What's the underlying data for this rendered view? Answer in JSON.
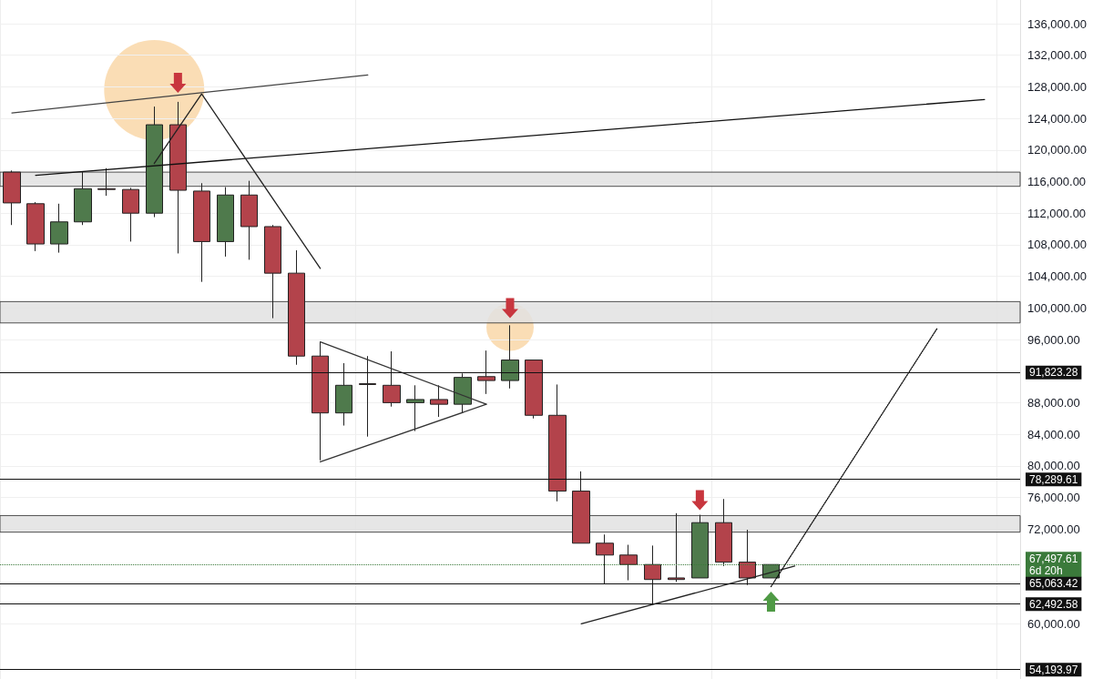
{
  "chart_data": {
    "type": "candlestick",
    "categories": [
      null,
      null,
      null,
      null,
      null,
      null,
      null,
      null,
      null,
      null,
      null,
      null,
      null,
      null,
      null,
      null,
      null,
      null,
      null,
      null,
      null,
      null,
      null,
      null,
      null,
      null,
      null,
      null,
      null,
      null,
      null,
      null,
      null,
      null,
      null,
      null,
      null,
      null,
      null,
      null,
      null,
      null,
      null
    ],
    "ohlc": [
      [
        117200,
        117400,
        110500,
        113300
      ],
      [
        113200,
        113400,
        107200,
        108100
      ],
      [
        108100,
        113200,
        107000,
        110900
      ],
      [
        110900,
        117200,
        110500,
        115100
      ],
      [
        115100,
        117700,
        114200,
        115000
      ],
      [
        115000,
        115200,
        108400,
        112000
      ],
      [
        112000,
        125500,
        111500,
        123200
      ],
      [
        123200,
        126100,
        106900,
        114900
      ],
      [
        114800,
        115800,
        103300,
        108400
      ],
      [
        108400,
        115300,
        106500,
        114300
      ],
      [
        114300,
        116100,
        106100,
        110300
      ],
      [
        110300,
        110500,
        98700,
        104400
      ],
      [
        104400,
        107300,
        92800,
        93900
      ],
      [
        93900,
        95700,
        80700,
        86700
      ],
      [
        86700,
        93000,
        85100,
        90200
      ],
      [
        90400,
        93900,
        83700,
        90300
      ],
      [
        90200,
        94500,
        87500,
        88000
      ],
      [
        88000,
        90200,
        84400,
        88400
      ],
      [
        88400,
        90200,
        86200,
        87800
      ],
      [
        87800,
        91700,
        86700,
        91200
      ],
      [
        91300,
        94600,
        89100,
        90800
      ],
      [
        90800,
        97800,
        89800,
        93400
      ],
      [
        93400,
        93400,
        86000,
        86400
      ],
      [
        86400,
        90300,
        75500,
        76800
      ],
      [
        76800,
        79300,
        70200,
        70200
      ],
      [
        70200,
        71300,
        65000,
        68700
      ],
      [
        68700,
        70000,
        65500,
        67500
      ],
      [
        67500,
        69900,
        62400,
        65600
      ],
      [
        65800,
        74000,
        65300,
        65600
      ],
      [
        65800,
        73800,
        65800,
        72800
      ],
      [
        72800,
        75800,
        67300,
        67800
      ],
      [
        67800,
        71900,
        64900,
        65800
      ],
      [
        65800,
        67500,
        65800,
        67500
      ],
      null,
      null,
      null,
      null,
      null,
      null,
      null,
      null,
      null,
      null
    ],
    "series": [
      {
        "type": "line",
        "color": "#111111",
        "values": [
          null,
          116800,
          null,
          null,
          null,
          null,
          null,
          null,
          null,
          null,
          null,
          null,
          null,
          null,
          null,
          null,
          null,
          null,
          null,
          null,
          null,
          null,
          null,
          null,
          null,
          null,
          null,
          null,
          null,
          null,
          null,
          null,
          null,
          null,
          null,
          null,
          null,
          null,
          null,
          null,
          null,
          126400,
          null
        ]
      },
      {
        "type": "line",
        "color": "#444444",
        "values": [
          124700,
          null,
          null,
          null,
          null,
          null,
          null,
          null,
          null,
          null,
          null,
          null,
          null,
          null,
          null,
          129500,
          null,
          null,
          null,
          null,
          null,
          null,
          null,
          null,
          null,
          null,
          null,
          null,
          null,
          null,
          null,
          null,
          null,
          null,
          null,
          null,
          null,
          null,
          null,
          null,
          null,
          null,
          null
        ]
      },
      {
        "type": "line",
        "color": "#222222",
        "values": [
          null,
          null,
          null,
          null,
          null,
          null,
          118300,
          null,
          127100,
          null,
          null,
          null,
          null,
          105000,
          null,
          null,
          null,
          null,
          null,
          null,
          null,
          null,
          null,
          null,
          null,
          null,
          null,
          null,
          null,
          null,
          null,
          null,
          null,
          null,
          null,
          null,
          null,
          null,
          null,
          null,
          null,
          null,
          null
        ]
      },
      {
        "type": "line",
        "color": "#333333",
        "values": [
          null,
          null,
          null,
          null,
          null,
          null,
          null,
          null,
          null,
          null,
          null,
          null,
          null,
          95700,
          null,
          null,
          null,
          null,
          null,
          null,
          87800,
          null,
          null,
          null,
          null,
          null,
          null,
          null,
          null,
          null,
          null,
          null,
          null,
          null,
          null,
          null,
          null,
          null,
          null,
          null,
          null,
          null,
          null
        ]
      },
      {
        "type": "line",
        "color": "#333333",
        "values": [
          null,
          null,
          null,
          null,
          null,
          null,
          null,
          null,
          null,
          null,
          null,
          null,
          null,
          80500,
          null,
          null,
          null,
          null,
          null,
          null,
          87800,
          null,
          null,
          null,
          null,
          null,
          null,
          null,
          null,
          null,
          null,
          null,
          null,
          null,
          null,
          null,
          null,
          null,
          null,
          null,
          null,
          null,
          null
        ]
      },
      {
        "type": "line",
        "color": "#222222",
        "values": [
          null,
          null,
          null,
          null,
          null,
          null,
          null,
          null,
          null,
          null,
          null,
          null,
          null,
          null,
          null,
          null,
          null,
          null,
          null,
          null,
          null,
          null,
          null,
          null,
          60000,
          null,
          null,
          null,
          null,
          null,
          null,
          null,
          null,
          67300,
          null,
          null,
          null,
          null,
          null,
          null,
          null,
          null,
          null
        ]
      },
      {
        "type": "line",
        "color": "#111111",
        "line_style": "dotted",
        "values": [
          null,
          null,
          null,
          null,
          null,
          null,
          null,
          null,
          null,
          null,
          null,
          null,
          null,
          null,
          null,
          null,
          null,
          null,
          null,
          null,
          null,
          null,
          null,
          null,
          null,
          null,
          null,
          null,
          null,
          null,
          null,
          null,
          64700,
          null,
          null,
          null,
          null,
          null,
          null,
          97400,
          null,
          null,
          null
        ]
      }
    ],
    "ylim": [
      53000,
      139000
    ],
    "yticks": [
      {
        "value": 60000,
        "label": "60,000.00"
      },
      {
        "value": 72000,
        "label": "72,000.00"
      },
      {
        "value": 76000,
        "label": "76,000.00"
      },
      {
        "value": 80000,
        "label": "80,000.00"
      },
      {
        "value": 84000,
        "label": "84,000.00"
      },
      {
        "value": 88000,
        "label": "88,000.00"
      },
      {
        "value": 96000,
        "label": "96,000.00"
      },
      {
        "value": 100000,
        "label": "100,000.00"
      },
      {
        "value": 104000,
        "label": "104,000.00"
      },
      {
        "value": 108000,
        "label": "108,000.00"
      },
      {
        "value": 112000,
        "label": "112,000.00"
      },
      {
        "value": 116000,
        "label": "116,000.00"
      },
      {
        "value": 120000,
        "label": "120,000.00"
      },
      {
        "value": 124000,
        "label": "124,000.00"
      },
      {
        "value": 128000,
        "label": "128,000.00"
      },
      {
        "value": 132000,
        "label": "132,000.00"
      },
      {
        "value": 136000,
        "label": "136,000.00"
      }
    ],
    "tick_labels": "y",
    "grid": true,
    "marker": "none",
    "ref_lines": [
      {
        "axis": "y",
        "value": 91823.28,
        "label": "91,823.28",
        "color": "#111111"
      },
      {
        "axis": "y",
        "value": 78289.61,
        "label": "78,289.61",
        "color": "#111111"
      },
      {
        "axis": "y",
        "value": 67497.61,
        "label": "67,497.61\n6d 20h",
        "color": "#3b7a3b",
        "line_style": "dotted"
      },
      {
        "axis": "y",
        "value": 65063.42,
        "label": "65,063.42",
        "color": "#111111"
      },
      {
        "axis": "y",
        "value": 62492.58,
        "label": "62,492.58",
        "color": "#111111"
      },
      {
        "axis": "y",
        "value": 54193.97,
        "label": "54,193.97",
        "color": "#111111"
      }
    ],
    "bands": [
      {
        "axis": "y",
        "from": 115400,
        "to": 117200,
        "color": "#e2e2e2"
      },
      {
        "axis": "y",
        "from": 98100,
        "to": 100800,
        "color": "#e2e2e2"
      },
      {
        "axis": "y",
        "from": 71600,
        "to": 73700,
        "color": "#e2e2e2"
      }
    ]
  }
}
